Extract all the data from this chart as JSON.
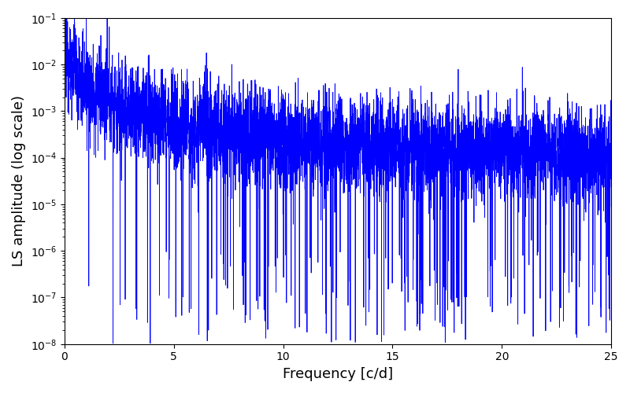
{
  "xlabel": "Frequency [c/d]",
  "ylabel": "LS amplitude (log scale)",
  "xlim": [
    0,
    25
  ],
  "ylim": [
    1e-08,
    0.1
  ],
  "line_color": "#0000ff",
  "line_width": 0.6,
  "background_color": "#ffffff",
  "figsize": [
    8.0,
    5.0
  ],
  "dpi": 100,
  "seed": 12345,
  "n_points": 5000,
  "freq_max": 25.0,
  "xlabel_fontsize": 13,
  "ylabel_fontsize": 13
}
